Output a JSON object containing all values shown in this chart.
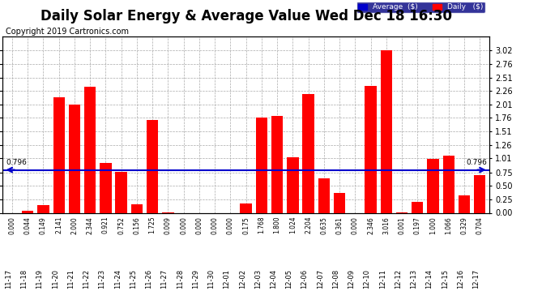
{
  "title": "Daily Solar Energy & Average Value Wed Dec 18 16:30",
  "copyright": "Copyright 2019 Cartronics.com",
  "categories": [
    "11-17",
    "11-18",
    "11-19",
    "11-20",
    "11-21",
    "11-22",
    "11-23",
    "11-24",
    "11-25",
    "11-26",
    "11-27",
    "11-28",
    "11-29",
    "11-30",
    "12-01",
    "12-02",
    "12-03",
    "12-04",
    "12-05",
    "12-06",
    "12-07",
    "12-08",
    "12-09",
    "12-10",
    "12-11",
    "12-12",
    "12-13",
    "12-14",
    "12-15",
    "12-16",
    "12-17"
  ],
  "values": [
    0.0,
    0.044,
    0.149,
    2.141,
    2.0,
    2.344,
    0.921,
    0.752,
    0.156,
    1.725,
    0.009,
    0.0,
    0.0,
    0.0,
    0.0,
    0.175,
    1.768,
    1.8,
    1.024,
    2.204,
    0.635,
    0.361,
    0.0,
    2.346,
    3.016,
    0.001,
    0.197,
    1.0,
    1.066,
    0.329,
    0.704
  ],
  "average": 0.796,
  "bar_color": "#FF0000",
  "average_color": "#0000CC",
  "ylim": [
    0.0,
    3.27
  ],
  "yticks": [
    0.0,
    0.25,
    0.5,
    0.75,
    1.01,
    1.26,
    1.51,
    1.76,
    2.01,
    2.26,
    2.51,
    2.76,
    3.02
  ],
  "background_color": "#FFFFFF",
  "plot_bg_color": "#FFFFFF",
  "grid_color": "#AAAAAA",
  "legend_avg_color": "#0000CC",
  "legend_daily_color": "#FF0000",
  "title_fontsize": 12,
  "copyright_fontsize": 7,
  "bar_value_fontsize": 5.5,
  "xtick_fontsize": 6,
  "ytick_fontsize": 7
}
